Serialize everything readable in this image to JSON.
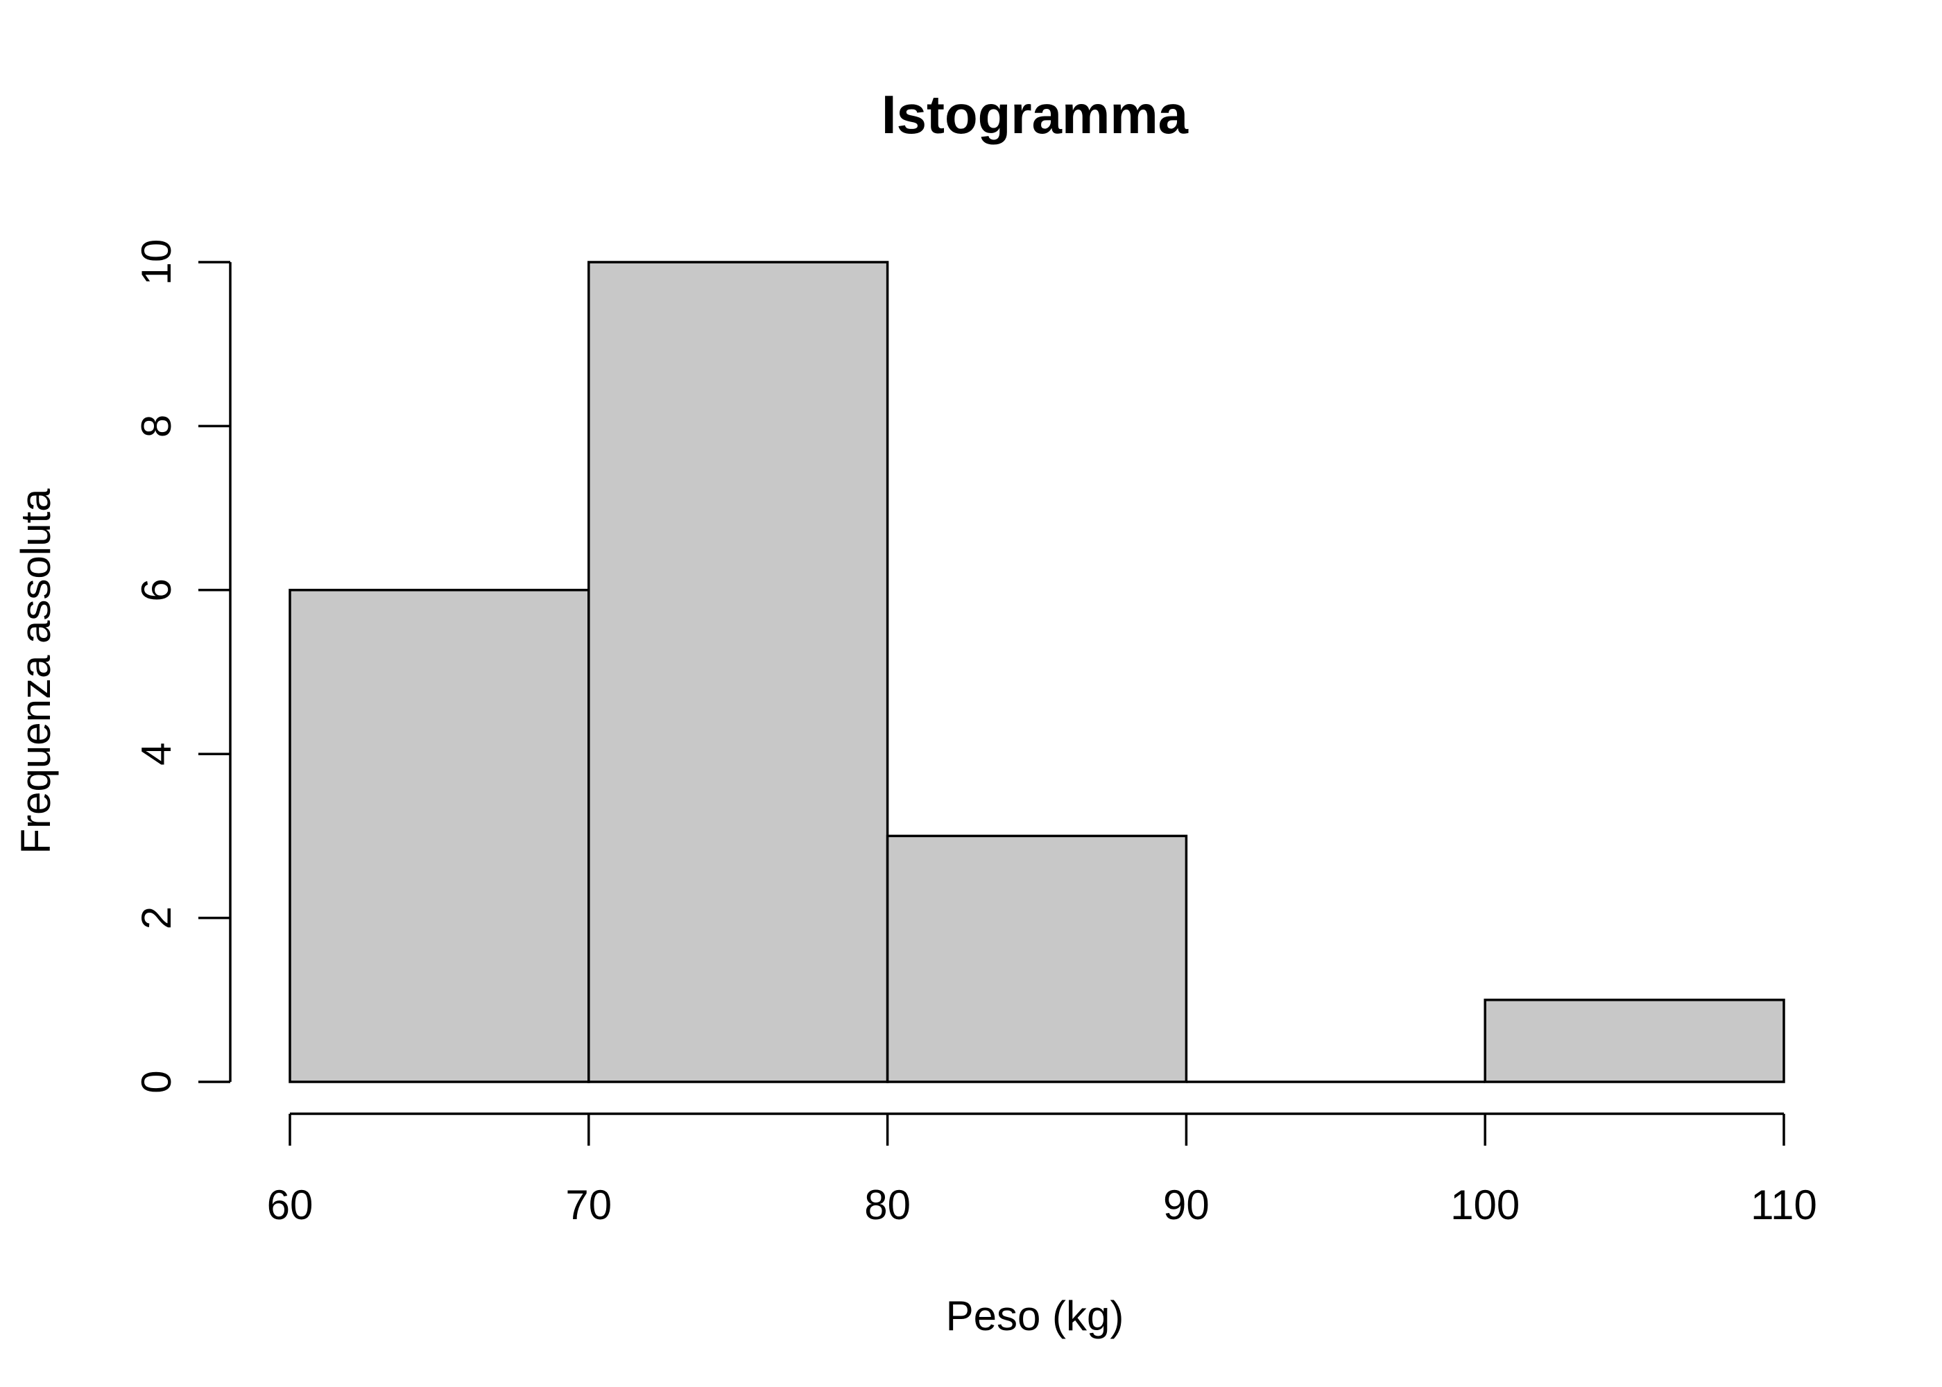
{
  "chart_data": {
    "type": "bar",
    "subtype": "histogram",
    "title": "Istogramma",
    "xlabel": "Peso (kg)",
    "ylabel": "Frequenza assoluta",
    "bins": [
      {
        "start": 60,
        "end": 70,
        "count": 6
      },
      {
        "start": 70,
        "end": 80,
        "count": 10
      },
      {
        "start": 80,
        "end": 90,
        "count": 3
      },
      {
        "start": 90,
        "end": 100,
        "count": 0
      },
      {
        "start": 100,
        "end": 110,
        "count": 1
      }
    ],
    "xlim": [
      60,
      110
    ],
    "ylim": [
      0,
      10
    ],
    "x_ticks": [
      60,
      70,
      80,
      90,
      100,
      110
    ],
    "y_ticks": [
      0,
      2,
      4,
      6,
      8,
      10
    ],
    "grid": false,
    "legend": "none",
    "bar_color": "#c8c8c8",
    "edge_color": "#000000"
  }
}
